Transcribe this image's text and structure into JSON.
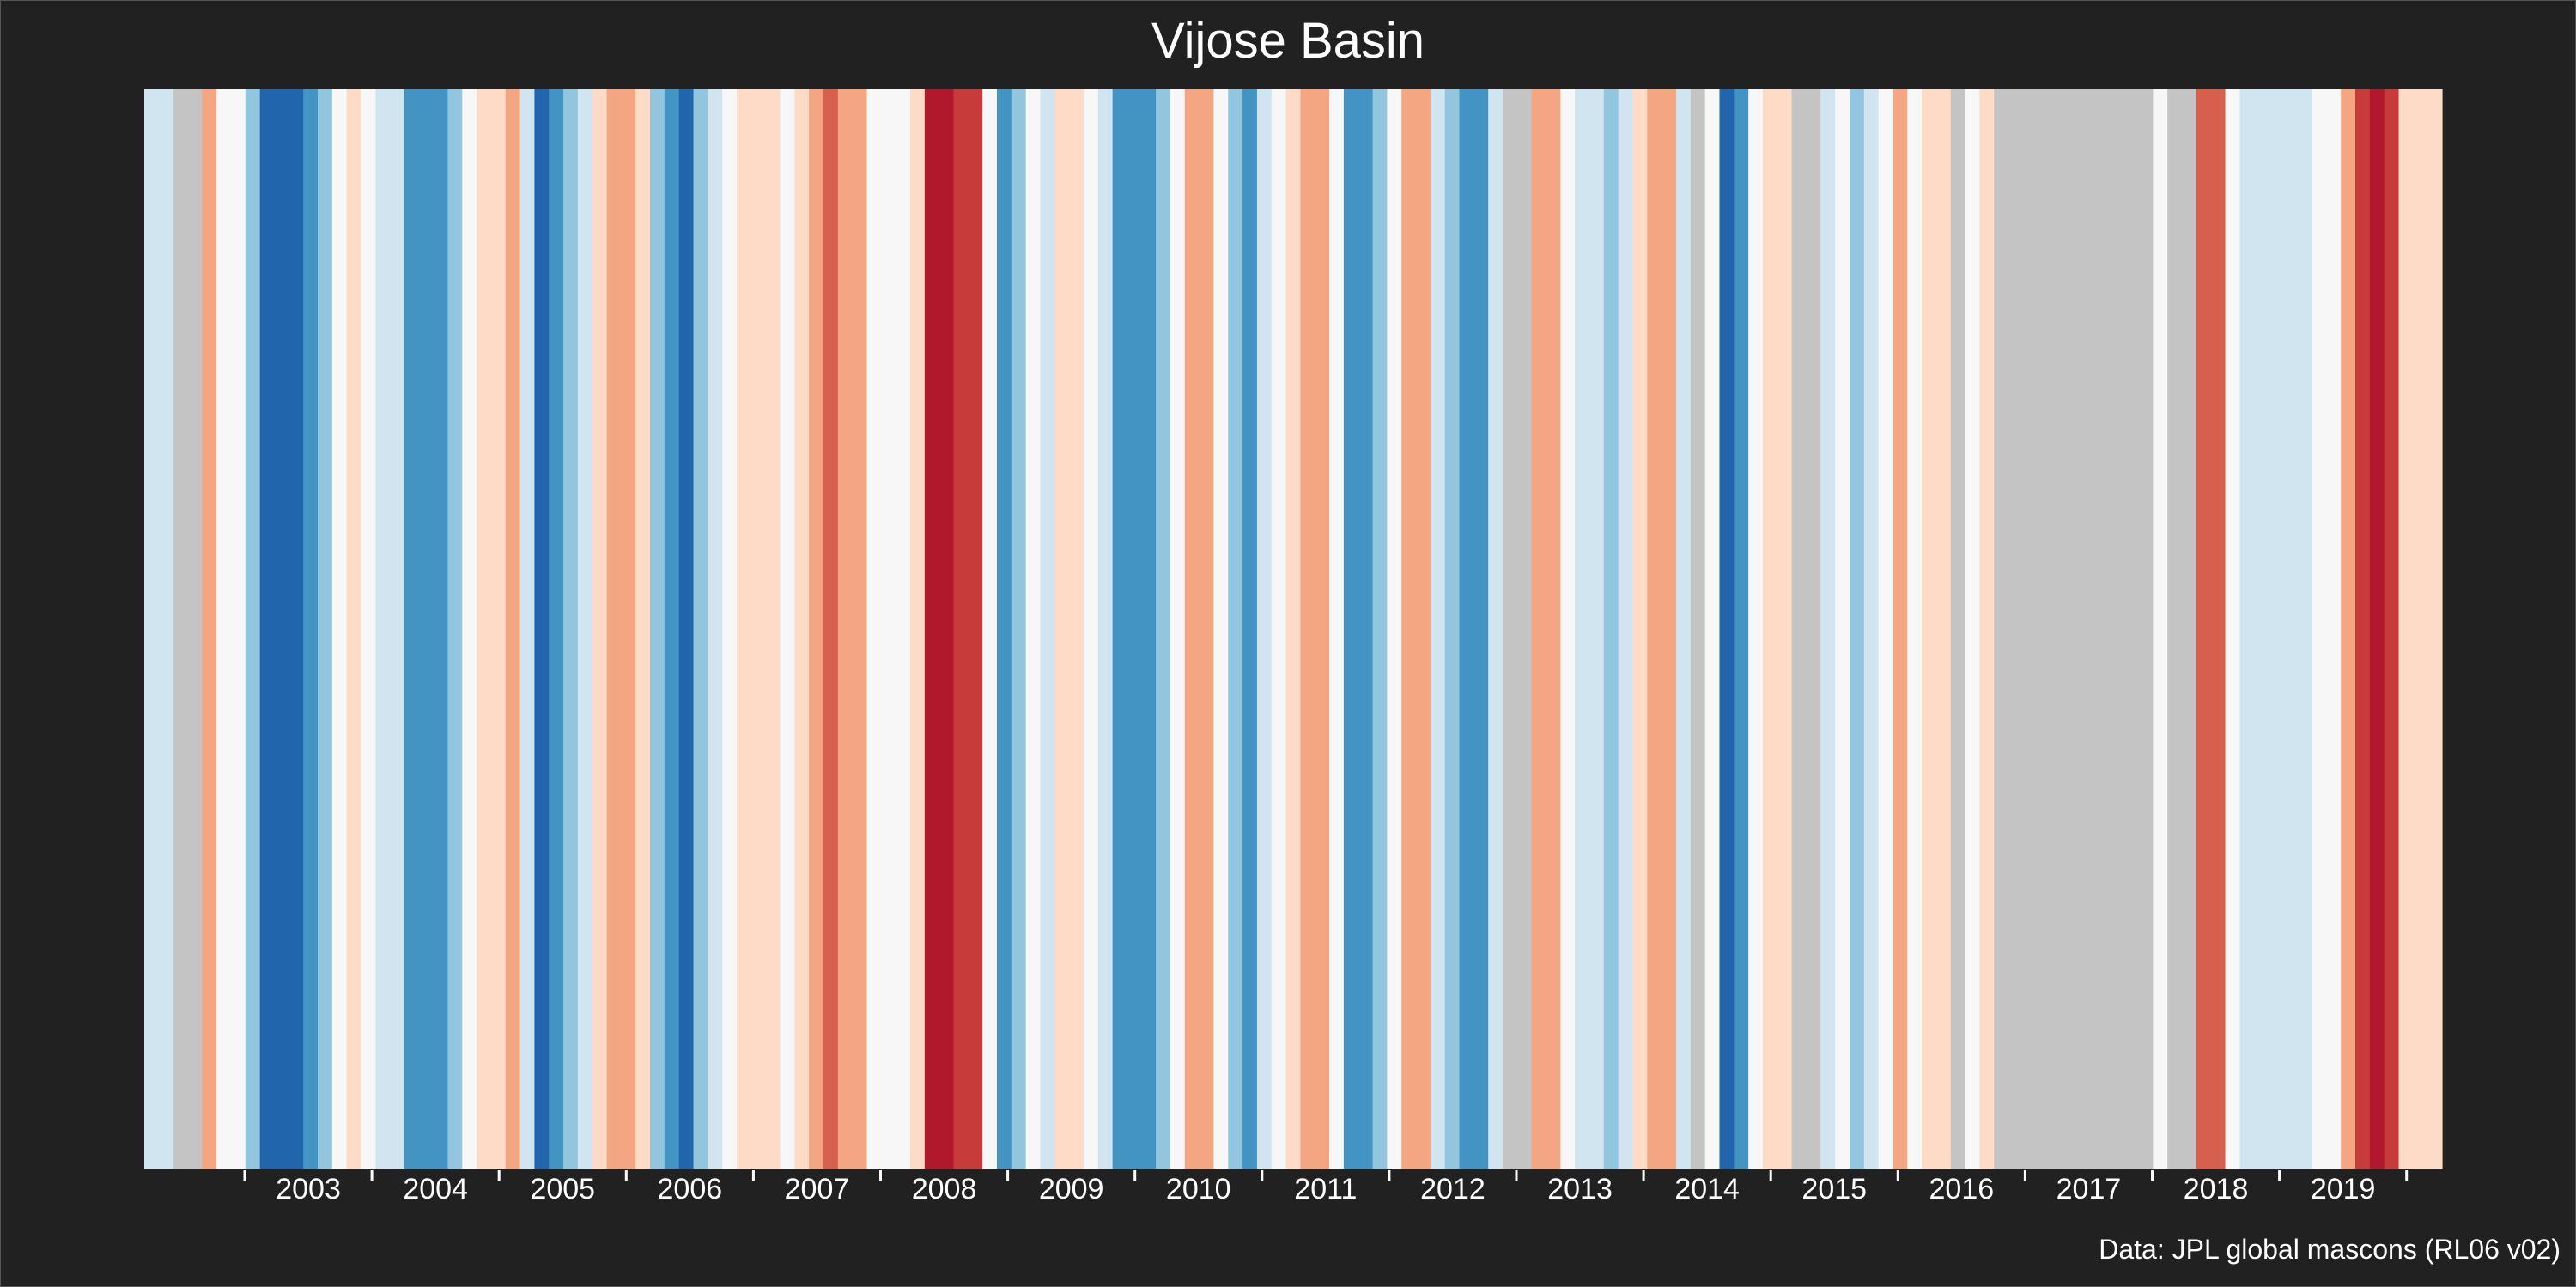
{
  "chart_data": {
    "type": "heatmap",
    "title": "Vijose Basin",
    "caption": "Data: JPL global mascons (RL06 v02)",
    "x_axis": {
      "labels": [
        "2003",
        "2004",
        "2005",
        "2006",
        "2007",
        "2008",
        "2009",
        "2010",
        "2011",
        "2012",
        "2013",
        "2014",
        "2015",
        "2016",
        "2017",
        "2018",
        "2019"
      ]
    },
    "grid": false,
    "legend": "none",
    "palette": {
      "background": "#212121",
      "missing": "#c4c4c4",
      "scale": [
        "#b2182b",
        "#c73b3a",
        "#d6604d",
        "#f4a582",
        "#fddbc7",
        "#f7f7f7",
        "#d1e5f0",
        "#92c5de",
        "#4393c3",
        "#2166ac"
      ],
      "text": "#ffffff",
      "axis": "#ffffff"
    },
    "stripe_colors": [
      "#d1e5f0",
      "#d1e5f0",
      "#c4c4c4",
      "#c4c4c4",
      "#f4a582",
      "#f7f7f7",
      "#f7f7f7",
      "#92c5de",
      "#2166ac",
      "#2166ac",
      "#2166ac",
      "#4393c3",
      "#92c5de",
      "#f7f7f7",
      "#fddbc7",
      "#f7f7f7",
      "#d1e5f0",
      "#d1e5f0",
      "#4393c3",
      "#4393c3",
      "#4393c3",
      "#92c5de",
      "#f7f7f7",
      "#fddbc7",
      "#fddbc7",
      "#f4a582",
      "#d1e5f0",
      "#2166ac",
      "#4393c3",
      "#92c5de",
      "#d1e5f0",
      "#fddbc7",
      "#f4a582",
      "#f4a582",
      "#fddbc7",
      "#92c5de",
      "#4393c3",
      "#2166ac",
      "#92c5de",
      "#d1e5f0",
      "#f7f7f7",
      "#fddbc7",
      "#fddbc7",
      "#fddbc7",
      "#f7f7f7",
      "#fddbc7",
      "#f4a582",
      "#d6604d",
      "#f4a582",
      "#f4a582",
      "#f7f7f7",
      "#f7f7f7",
      "#f7f7f7",
      "#fddbc7",
      "#b2182b",
      "#b2182b",
      "#c73b3a",
      "#c73b3a",
      "#f7f7f7",
      "#4393c3",
      "#92c5de",
      "#f7f7f7",
      "#d1e5f0",
      "#fddbc7",
      "#fddbc7",
      "#f7f7f7",
      "#d1e5f0",
      "#4393c3",
      "#4393c3",
      "#4393c3",
      "#92c5de",
      "#f7f7f7",
      "#f4a582",
      "#f4a582",
      "#f7f7f7",
      "#92c5de",
      "#4393c3",
      "#d1e5f0",
      "#f7f7f7",
      "#fddbc7",
      "#f4a582",
      "#f4a582",
      "#f7f7f7",
      "#4393c3",
      "#4393c3",
      "#92c5de",
      "#f7f7f7",
      "#f4a582",
      "#f4a582",
      "#d1e5f0",
      "#92c5de",
      "#4393c3",
      "#4393c3",
      "#d1e5f0",
      "#c4c4c4",
      "#c4c4c4",
      "#f4a582",
      "#f4a582",
      "#f7f7f7",
      "#d1e5f0",
      "#d1e5f0",
      "#92c5de",
      "#d1e5f0",
      "#fddbc7",
      "#f4a582",
      "#f4a582",
      "#d1e5f0",
      "#c4c4c4",
      "#f7f7f7",
      "#2166ac",
      "#4393c3",
      "#f7f7f7",
      "#fddbc7",
      "#fddbc7",
      "#c4c4c4",
      "#c4c4c4",
      "#d1e5f0",
      "#f7f7f7",
      "#92c5de",
      "#d1e5f0",
      "#f7f7f7",
      "#f4a582",
      "#f7f7f7",
      "#fddbc7",
      "#fddbc7",
      "#c4c4c4",
      "#f7f7f7",
      "#fddbc7",
      "#c4c4c4",
      "#c4c4c4",
      "#c4c4c4",
      "#c4c4c4",
      "#c4c4c4",
      "#c4c4c4",
      "#c4c4c4",
      "#c4c4c4",
      "#c4c4c4",
      "#c4c4c4",
      "#c4c4c4",
      "#f7f7f7",
      "#c4c4c4",
      "#c4c4c4",
      "#d6604d",
      "#d6604d",
      "#f7f7f7",
      "#d1e5f0",
      "#d1e5f0",
      "#d1e5f0",
      "#d1e5f0",
      "#d1e5f0",
      "#f7f7f7",
      "#f7f7f7",
      "#f4a582",
      "#c73b3a",
      "#b2182b",
      "#c73b3a",
      "#fddbc7",
      "#fddbc7",
      "#fddbc7"
    ]
  }
}
